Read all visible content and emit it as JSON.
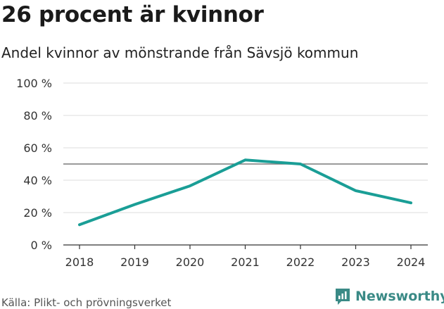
{
  "title": "26 procent är kvinnor",
  "subtitle": "Andel kvinnor av mönstrande från Sävsjö kommun",
  "source": "Källa: Plikt- och prövningsverket",
  "brand": "Newsworthy",
  "colors": {
    "line": "#1a9e96",
    "grid": "#dddddd",
    "reference": "#7a7a7a",
    "text": "#333333",
    "brand": "#3a8a86"
  },
  "chart_data": {
    "type": "line",
    "x": [
      "2018",
      "2019",
      "2020",
      "2021",
      "2022",
      "2023",
      "2024"
    ],
    "series": [
      {
        "values": [
          12.5,
          25,
          36.5,
          52.5,
          50,
          33.5,
          26
        ]
      }
    ],
    "reference_line": 50,
    "yticks": [
      0,
      20,
      40,
      60,
      80,
      100
    ],
    "ytick_labels": [
      "0 %",
      "20 %",
      "40 %",
      "60 %",
      "80 %",
      "100 %"
    ],
    "ylim": [
      0,
      100
    ],
    "grid": true,
    "legend": "none"
  }
}
